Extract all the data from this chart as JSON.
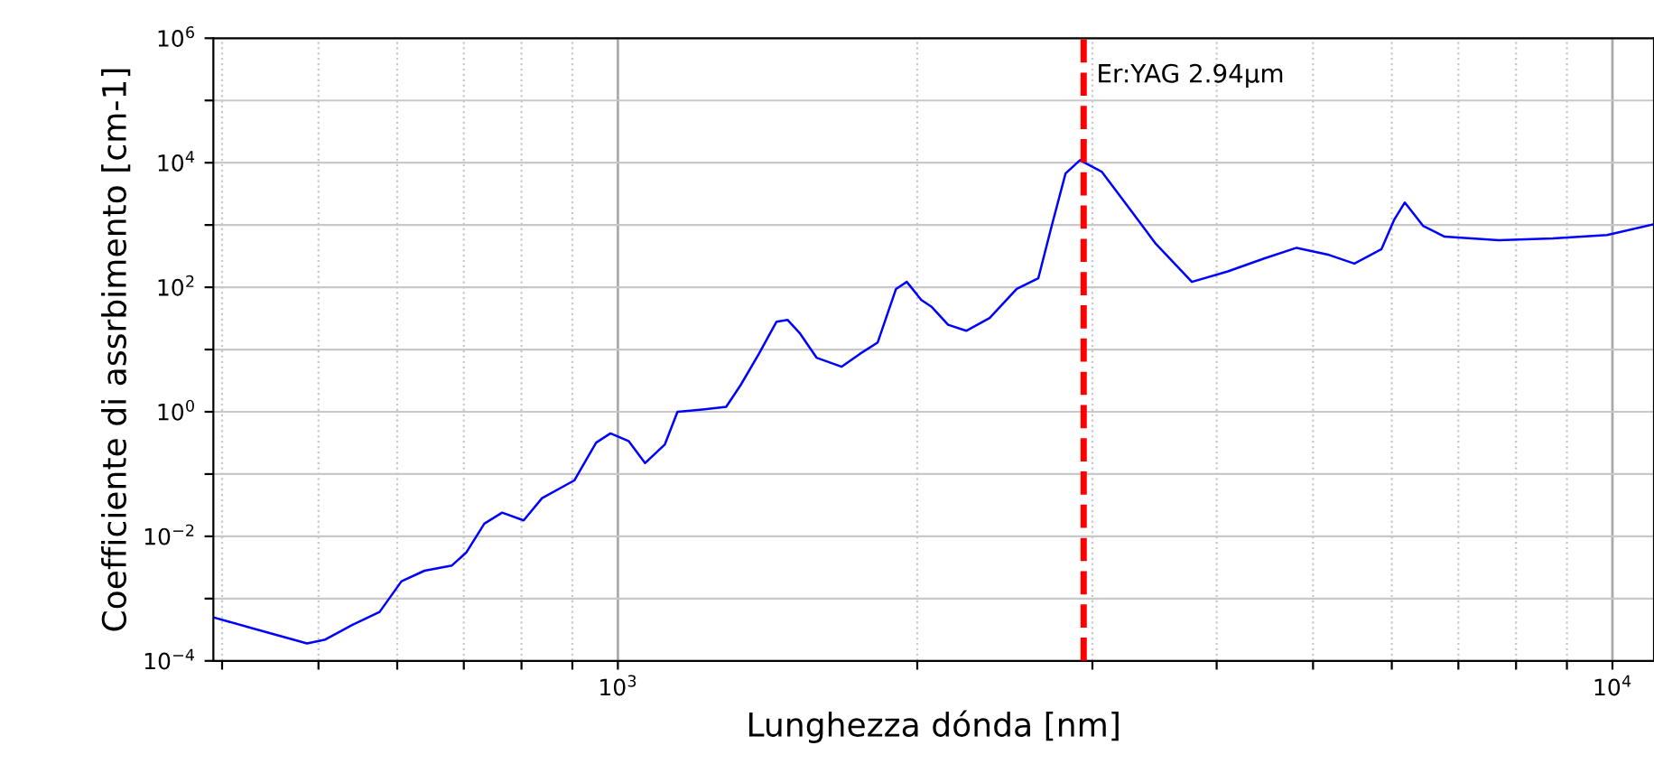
{
  "chart_data": {
    "type": "line",
    "xlabel": "Lunghezza dónda [nm]",
    "ylabel": "Coefficiente di assrbimento [cm-1]",
    "log": "xy",
    "grid": true,
    "legend": false,
    "marker": "none",
    "line_style": "solid",
    "xlim": [
      392,
      11010
    ],
    "ylim": [
      0.0001,
      1000000
    ],
    "xticks": [
      {
        "value": 400,
        "label": null
      },
      {
        "value": 500,
        "label": null
      },
      {
        "value": 600,
        "label": null
      },
      {
        "value": 700,
        "label": null
      },
      {
        "value": 800,
        "label": null
      },
      {
        "value": 900,
        "label": null
      },
      {
        "value": 1000,
        "label": "10$^{3}$"
      },
      {
        "value": 2000,
        "label": null
      },
      {
        "value": 3000,
        "label": null
      },
      {
        "value": 4000,
        "label": null
      },
      {
        "value": 5000,
        "label": null
      },
      {
        "value": 6000,
        "label": null
      },
      {
        "value": 7000,
        "label": null
      },
      {
        "value": 8000,
        "label": null
      },
      {
        "value": 9000,
        "label": null
      },
      {
        "value": 10000,
        "label": "10$^{4}$"
      }
    ],
    "yticks": [
      {
        "value": 0.0001,
        "label": "10$^{−4}$"
      },
      {
        "value": 0.001,
        "label": null
      },
      {
        "value": 0.01,
        "label": "10$^{−2}$"
      },
      {
        "value": 0.1,
        "label": null
      },
      {
        "value": 1,
        "label": "10$^{0}$"
      },
      {
        "value": 10,
        "label": null
      },
      {
        "value": 100,
        "label": "10$^{2}$"
      },
      {
        "value": 1000,
        "label": null
      },
      {
        "value": 10000,
        "label": "10$^{4}$"
      },
      {
        "value": 100000,
        "label": null
      },
      {
        "value": 1000000,
        "label": "10$^{6}$"
      }
    ],
    "ref_lines": [
      {
        "axis": "x",
        "value": 2940,
        "label": "Er:YAG 2.94µm",
        "color": "#ff0000",
        "line_style": "dashed"
      }
    ],
    "series": [
      {
        "color": "#0000ff",
        "x": [
          392,
          430,
          487,
          508,
          541,
          576,
          606,
          639,
          681,
          704,
          734,
          765,
          804,
          839,
          904,
          951,
          983,
          1025,
          1065,
          1115,
          1148,
          1222,
          1285,
          1329,
          1386,
          1444,
          1481,
          1525,
          1584,
          1679,
          1751,
          1825,
          1904,
          1952,
          2018,
          2069,
          2148,
          2240,
          2365,
          2518,
          2647,
          2727,
          2819,
          2915,
          3065,
          3264,
          3474,
          3777,
          4106,
          4464,
          4813,
          5190,
          5502,
          5859,
          6031,
          6184,
          6450,
          6780,
          7686,
          8711,
          9876,
          11010
        ],
        "values": [
          0.0005,
          0.00033,
          0.00019,
          0.00022,
          0.00038,
          0.00061,
          0.0019,
          0.0028,
          0.0034,
          0.0055,
          0.016,
          0.024,
          0.018,
          0.041,
          0.079,
          0.32,
          0.45,
          0.34,
          0.15,
          0.3,
          1.0,
          1.1,
          1.2,
          2.7,
          8.5,
          28,
          30,
          18,
          7.4,
          5.3,
          8.5,
          13,
          94,
          122,
          63,
          48,
          25,
          20,
          32,
          94,
          140,
          900,
          6700,
          11000,
          7200,
          1900,
          500,
          122,
          180,
          290,
          430,
          330,
          240,
          410,
          1200,
          2300,
          970,
          650,
          570,
          610,
          690,
          1030
        ]
      }
    ]
  }
}
